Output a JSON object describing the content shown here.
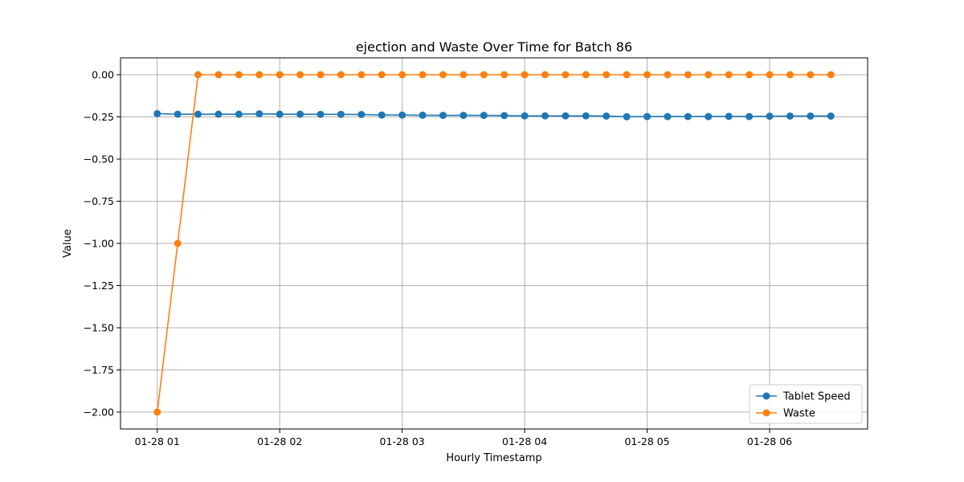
{
  "chart_data": {
    "type": "line",
    "title": "ejection and Waste Over Time for Batch 86",
    "xlabel": "Hourly Timestamp",
    "ylabel": "Value",
    "x_ticks": [
      {
        "hour": 1,
        "label": "01-28 01"
      },
      {
        "hour": 2,
        "label": "01-28 02"
      },
      {
        "hour": 3,
        "label": "01-28 03"
      },
      {
        "hour": 4,
        "label": "01-28 04"
      },
      {
        "hour": 5,
        "label": "01-28 05"
      },
      {
        "hour": 6,
        "label": "01-28 06"
      }
    ],
    "y_ticks": [
      {
        "value": 0.0,
        "label": "0.00"
      },
      {
        "value": -0.25,
        "label": "−0.25"
      },
      {
        "value": -0.5,
        "label": "−0.50"
      },
      {
        "value": -0.75,
        "label": "−0.75"
      },
      {
        "value": -1.0,
        "label": "−1.00"
      },
      {
        "value": -1.25,
        "label": "−1.25"
      },
      {
        "value": -1.5,
        "label": "−1.50"
      },
      {
        "value": -1.75,
        "label": "−1.75"
      },
      {
        "value": -2.0,
        "label": "−2.00"
      }
    ],
    "xlim": [
      0.7,
      6.8
    ],
    "ylim": [
      -2.1,
      0.1
    ],
    "grid": true,
    "legend_position": "bottom-right",
    "x": [
      1.0,
      1.1667,
      1.3333,
      1.5,
      1.6667,
      1.8333,
      2.0,
      2.1667,
      2.3333,
      2.5,
      2.6667,
      2.8333,
      3.0,
      3.1667,
      3.3333,
      3.5,
      3.6667,
      3.8333,
      4.0,
      4.1667,
      4.3333,
      4.5,
      4.6667,
      4.8333,
      5.0,
      5.1667,
      5.3333,
      5.5,
      5.6667,
      5.8333,
      6.0,
      6.1667,
      6.3333,
      6.5
    ],
    "series": [
      {
        "name": "Tablet Speed",
        "color": "#1f77b4",
        "values": [
          -0.231,
          -0.234,
          -0.234,
          -0.234,
          -0.234,
          -0.232,
          -0.234,
          -0.234,
          -0.235,
          -0.235,
          -0.236,
          -0.239,
          -0.239,
          -0.24,
          -0.241,
          -0.241,
          -0.241,
          -0.242,
          -0.244,
          -0.244,
          -0.244,
          -0.244,
          -0.245,
          -0.249,
          -0.248,
          -0.248,
          -0.248,
          -0.248,
          -0.247,
          -0.248,
          -0.246,
          -0.245,
          -0.245,
          -0.245
        ]
      },
      {
        "name": "Waste",
        "color": "#ff7f0e",
        "values": [
          -2.0,
          -1.0,
          0.0,
          0.0,
          0.0,
          0.0,
          0.0,
          0.0,
          0.0,
          0.0,
          0.0,
          0.0,
          0.0,
          0.0,
          0.0,
          0.0,
          0.0,
          0.0,
          0.0,
          0.0,
          0.0,
          0.0,
          0.0,
          0.0,
          0.0,
          0.0,
          0.0,
          0.0,
          0.0,
          0.0,
          0.0,
          0.0,
          0.0,
          0.0
        ]
      }
    ]
  }
}
